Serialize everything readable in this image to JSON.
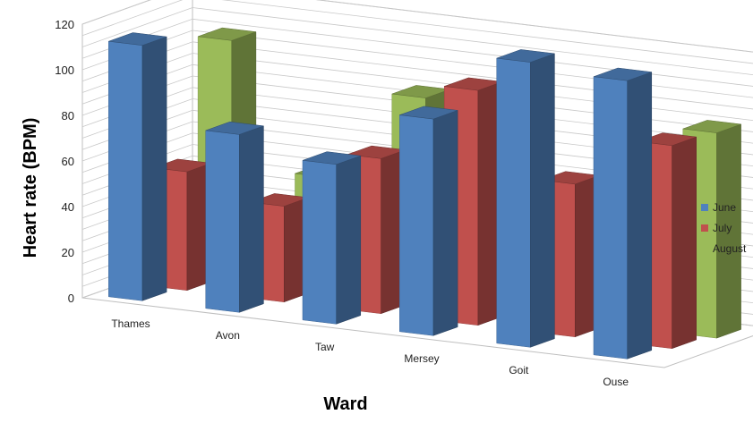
{
  "chart_data": {
    "type": "bar",
    "style": "3d-clustered-depth",
    "title": "",
    "xlabel": "Ward",
    "ylabel": "Heart rate (BPM)",
    "ylim": [
      0,
      120
    ],
    "yticks": [
      0,
      20,
      40,
      60,
      80,
      100,
      120
    ],
    "grid": true,
    "legend_position": "right",
    "categories": [
      "Thames",
      "Avon",
      "Taw",
      "Mersey",
      "Goit",
      "Ouse"
    ],
    "series": [
      {
        "name": "June",
        "color": "#4f81bd",
        "values": [
          112,
          78,
          70,
          95,
          125,
          122
        ]
      },
      {
        "name": "July",
        "color": "#c0504d",
        "values": [
          52,
          42,
          68,
          103,
          67,
          89
        ]
      },
      {
        "name": "August",
        "color": "#9bbb59",
        "values": [
          105,
          50,
          90,
          75,
          53,
          90
        ]
      }
    ]
  }
}
